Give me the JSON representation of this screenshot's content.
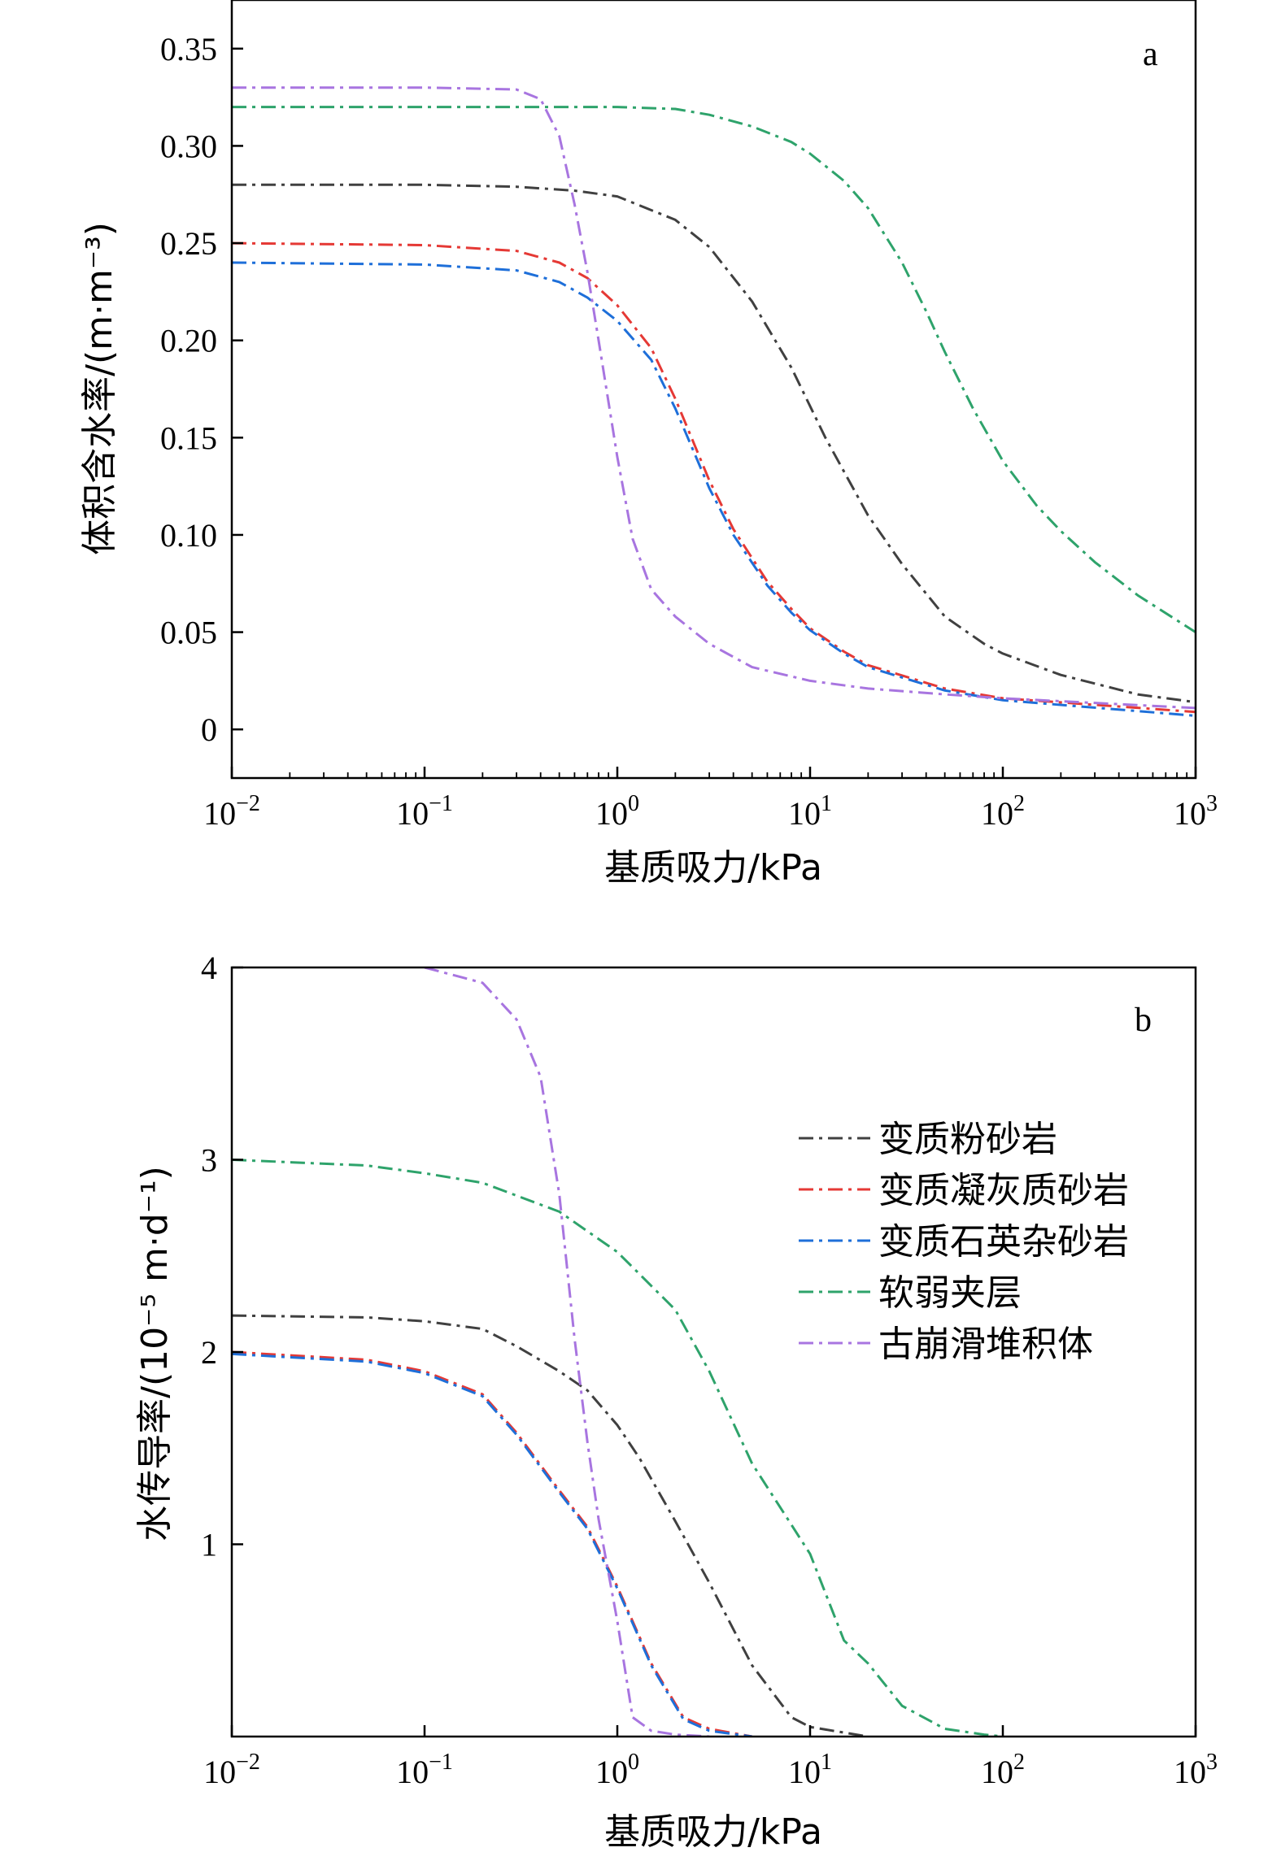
{
  "colors": {
    "变质粉砂岩": "#404040",
    "变质凝灰质砂岩": "#e53935",
    "变质石英杂砂岩": "#1e6fd9",
    "软弱夹层": "#2ea36b",
    "古崩滑堆积体": "#a875e0"
  },
  "chart_data": [
    {
      "type": "line",
      "panel": "a",
      "xscale": "log",
      "xlim": [
        0.01,
        1000
      ],
      "ylim": [
        -0.025,
        0.375
      ],
      "xlabel": "基质吸力/kPa",
      "ylabel": "体积含水率/(m·m⁻³)",
      "x_ticks": [
        {
          "value": 0.01,
          "base": "10",
          "exp": "−2"
        },
        {
          "value": 0.1,
          "base": "10",
          "exp": "−1"
        },
        {
          "value": 1,
          "base": "10",
          "exp": "0"
        },
        {
          "value": 10,
          "base": "10",
          "exp": "1"
        },
        {
          "value": 100,
          "base": "10",
          "exp": "2"
        },
        {
          "value": 1000,
          "base": "10",
          "exp": "3"
        }
      ],
      "y_ticks": [
        {
          "value": 0,
          "label": "0"
        },
        {
          "value": 0.05,
          "label": "0.05"
        },
        {
          "value": 0.1,
          "label": "0.10"
        },
        {
          "value": 0.15,
          "label": "0.15"
        },
        {
          "value": 0.2,
          "label": "0.20"
        },
        {
          "value": 0.25,
          "label": "0.25"
        },
        {
          "value": 0.3,
          "label": "0.30"
        },
        {
          "value": 0.35,
          "label": "0.35"
        }
      ],
      "series": [
        {
          "name": "变质粉砂岩",
          "x": [
            0.01,
            0.1,
            0.3,
            0.6,
            1,
            2,
            3,
            5,
            8,
            12,
            20,
            30,
            50,
            80,
            100,
            200,
            500,
            1000
          ],
          "y": [
            0.28,
            0.28,
            0.279,
            0.277,
            0.274,
            0.262,
            0.248,
            0.22,
            0.186,
            0.15,
            0.11,
            0.085,
            0.058,
            0.044,
            0.039,
            0.028,
            0.018,
            0.014
          ]
        },
        {
          "name": "变质凝灰质砂岩",
          "x": [
            0.01,
            0.1,
            0.3,
            0.5,
            0.7,
            1,
            1.5,
            2,
            3,
            4,
            6,
            8,
            10,
            15,
            20,
            50,
            100,
            1000
          ],
          "y": [
            0.25,
            0.249,
            0.246,
            0.24,
            0.232,
            0.218,
            0.196,
            0.17,
            0.128,
            0.103,
            0.076,
            0.062,
            0.052,
            0.04,
            0.033,
            0.021,
            0.016,
            0.009
          ]
        },
        {
          "name": "变质石英杂砂岩",
          "x": [
            0.01,
            0.1,
            0.3,
            0.5,
            0.7,
            1,
            1.5,
            2,
            3,
            4,
            6,
            8,
            10,
            15,
            20,
            50,
            100,
            1000
          ],
          "y": [
            0.24,
            0.239,
            0.236,
            0.23,
            0.222,
            0.21,
            0.19,
            0.165,
            0.124,
            0.1,
            0.074,
            0.06,
            0.051,
            0.039,
            0.032,
            0.02,
            0.015,
            0.007
          ]
        },
        {
          "name": "软弱夹层",
          "x": [
            0.01,
            0.1,
            1,
            2,
            3,
            5,
            8,
            10,
            15,
            20,
            30,
            40,
            50,
            70,
            100,
            150,
            200,
            300,
            500,
            1000
          ],
          "y": [
            0.32,
            0.32,
            0.32,
            0.319,
            0.316,
            0.31,
            0.302,
            0.296,
            0.282,
            0.268,
            0.24,
            0.215,
            0.194,
            0.165,
            0.138,
            0.115,
            0.102,
            0.086,
            0.069,
            0.05
          ]
        },
        {
          "name": "古崩滑堆积体",
          "x": [
            0.01,
            0.1,
            0.3,
            0.4,
            0.5,
            0.6,
            0.7,
            0.8,
            1,
            1.2,
            1.5,
            2,
            3,
            5,
            10,
            20,
            50,
            100,
            1000
          ],
          "y": [
            0.33,
            0.33,
            0.329,
            0.324,
            0.305,
            0.27,
            0.235,
            0.2,
            0.14,
            0.098,
            0.072,
            0.058,
            0.044,
            0.032,
            0.025,
            0.021,
            0.018,
            0.016,
            0.011
          ]
        }
      ]
    },
    {
      "type": "line",
      "panel": "b",
      "xscale": "log",
      "xlim": [
        0.01,
        1000
      ],
      "ylim": [
        0,
        4
      ],
      "xlabel": "基质吸力/kPa",
      "ylabel": "水传导率/(10⁻⁵ m·d⁻¹)",
      "x_ticks": [
        {
          "value": 0.01,
          "base": "10",
          "exp": "−2"
        },
        {
          "value": 0.1,
          "base": "10",
          "exp": "−1"
        },
        {
          "value": 1,
          "base": "10",
          "exp": "0"
        },
        {
          "value": 10,
          "base": "10",
          "exp": "1"
        },
        {
          "value": 100,
          "base": "10",
          "exp": "2"
        },
        {
          "value": 1000,
          "base": "10",
          "exp": "3"
        }
      ],
      "y_ticks": [
        {
          "value": 1,
          "label": "1"
        },
        {
          "value": 2,
          "label": "2"
        },
        {
          "value": 3,
          "label": "3"
        },
        {
          "value": 4,
          "label": "4"
        }
      ],
      "legend_position": "right",
      "series": [
        {
          "name": "变质粉砂岩",
          "x": [
            0.01,
            0.05,
            0.1,
            0.2,
            0.3,
            0.5,
            0.7,
            1,
            1.3,
            2,
            3,
            5,
            8,
            10,
            20
          ],
          "y": [
            2.19,
            2.18,
            2.16,
            2.12,
            2.03,
            1.9,
            1.8,
            1.62,
            1.45,
            1.12,
            0.8,
            0.37,
            0.1,
            0.05,
            0.0
          ]
        },
        {
          "name": "变质凝灰质砂岩",
          "x": [
            0.01,
            0.05,
            0.1,
            0.2,
            0.3,
            0.5,
            0.7,
            1,
            1.5,
            2.2,
            3,
            5
          ],
          "y": [
            2.0,
            1.96,
            1.9,
            1.78,
            1.58,
            1.28,
            1.09,
            0.78,
            0.38,
            0.1,
            0.04,
            0.0
          ]
        },
        {
          "name": "变质石英杂砂岩",
          "x": [
            0.01,
            0.05,
            0.1,
            0.2,
            0.3,
            0.5,
            0.7,
            1,
            1.5,
            2.2,
            3,
            5
          ],
          "y": [
            1.99,
            1.95,
            1.89,
            1.77,
            1.57,
            1.27,
            1.08,
            0.77,
            0.37,
            0.09,
            0.03,
            0.0
          ]
        },
        {
          "name": "软弱夹层",
          "x": [
            0.01,
            0.05,
            0.1,
            0.2,
            0.5,
            1,
            2,
            3,
            5,
            10,
            15,
            20,
            30,
            50,
            80,
            100
          ],
          "y": [
            3.0,
            2.97,
            2.93,
            2.88,
            2.73,
            2.52,
            2.22,
            1.9,
            1.42,
            0.95,
            0.5,
            0.38,
            0.16,
            0.04,
            0.01,
            0.0
          ]
        },
        {
          "name": "古崩滑堆积体",
          "x": [
            0.1,
            0.2,
            0.3,
            0.4,
            0.5,
            0.6,
            0.7,
            0.8,
            1,
            1.2,
            1.5,
            2,
            3
          ],
          "y": [
            4.0,
            3.92,
            3.73,
            3.43,
            2.82,
            2.07,
            1.53,
            1.13,
            0.6,
            0.1,
            0.03,
            0.01,
            0.0
          ]
        }
      ]
    }
  ]
}
